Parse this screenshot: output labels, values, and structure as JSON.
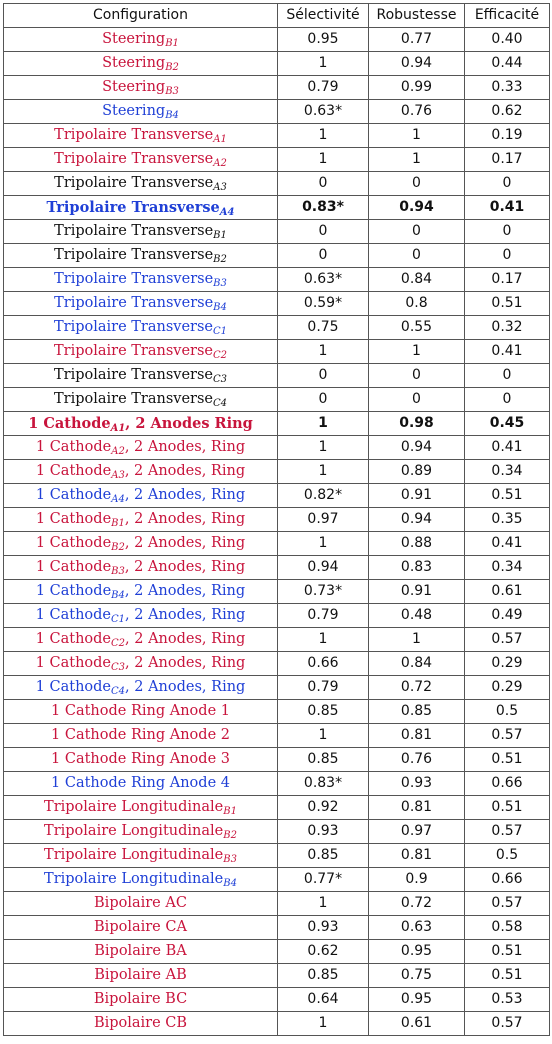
{
  "headers": [
    "Configuration",
    "Sélectivité",
    "Robustesse",
    "Efficacité"
  ],
  "colors": {
    "red": "#c8143c",
    "blue": "#1f3fd6",
    "black": "#111111"
  },
  "rows": [
    {
      "name": "Steering",
      "sub": "B1",
      "suffix": "",
      "color": "red",
      "bold": false,
      "sel": "0.95",
      "rob": "0.77",
      "eff": "0.40"
    },
    {
      "name": "Steering",
      "sub": "B2",
      "suffix": "",
      "color": "red",
      "bold": false,
      "sel": "1",
      "rob": "0.94",
      "eff": "0.44"
    },
    {
      "name": "Steering",
      "sub": "B3",
      "suffix": "",
      "color": "red",
      "bold": false,
      "sel": "0.79",
      "rob": "0.99",
      "eff": "0.33"
    },
    {
      "name": "Steering",
      "sub": "B4",
      "suffix": "",
      "color": "blue",
      "bold": false,
      "sel": "0.63*",
      "rob": "0.76",
      "eff": "0.62"
    },
    {
      "name": "Tripolaire Transverse",
      "sub": "A1",
      "suffix": "",
      "color": "red",
      "bold": false,
      "sel": "1",
      "rob": "1",
      "eff": "0.19"
    },
    {
      "name": "Tripolaire Transverse",
      "sub": "A2",
      "suffix": "",
      "color": "red",
      "bold": false,
      "sel": "1",
      "rob": "1",
      "eff": "0.17"
    },
    {
      "name": "Tripolaire Transverse",
      "sub": "A3",
      "suffix": "",
      "color": "black",
      "bold": false,
      "sel": "0",
      "rob": "0",
      "eff": "0"
    },
    {
      "name": "Tripolaire Transverse",
      "sub": "A4",
      "suffix": "",
      "color": "blue",
      "bold": true,
      "sel": "0.83*",
      "rob": "0.94",
      "eff": "0.41"
    },
    {
      "name": "Tripolaire Transverse",
      "sub": "B1",
      "suffix": "",
      "color": "black",
      "bold": false,
      "sel": "0",
      "rob": "0",
      "eff": "0"
    },
    {
      "name": "Tripolaire Transverse",
      "sub": "B2",
      "suffix": "",
      "color": "black",
      "bold": false,
      "sel": "0",
      "rob": "0",
      "eff": "0"
    },
    {
      "name": "Tripolaire Transverse",
      "sub": "B3",
      "suffix": "",
      "color": "blue",
      "bold": false,
      "sel": "0.63*",
      "rob": "0.84",
      "eff": "0.17"
    },
    {
      "name": "Tripolaire Transverse",
      "sub": "B4",
      "suffix": "",
      "color": "blue",
      "bold": false,
      "sel": "0.59*",
      "rob": "0.8",
      "eff": "0.51"
    },
    {
      "name": "Tripolaire Transverse",
      "sub": "C1",
      "suffix": "",
      "color": "blue",
      "bold": false,
      "sel": "0.75",
      "rob": "0.55",
      "eff": "0.32"
    },
    {
      "name": "Tripolaire Transverse",
      "sub": "C2",
      "suffix": "",
      "color": "red",
      "bold": false,
      "sel": "1",
      "rob": "1",
      "eff": "0.41"
    },
    {
      "name": "Tripolaire Transverse",
      "sub": "C3",
      "suffix": "",
      "color": "black",
      "bold": false,
      "sel": "0",
      "rob": "0",
      "eff": "0"
    },
    {
      "name": "Tripolaire Transverse",
      "sub": "C4",
      "suffix": "",
      "color": "black",
      "bold": false,
      "sel": "0",
      "rob": "0",
      "eff": "0"
    },
    {
      "name": "1 Cathode",
      "sub": "A1",
      "suffix": ", 2 Anodes Ring",
      "color": "red",
      "bold": true,
      "sel": "1",
      "rob": "0.98",
      "eff": "0.45"
    },
    {
      "name": "1 Cathode",
      "sub": "A2",
      "suffix": ", 2 Anodes, Ring",
      "color": "red",
      "bold": false,
      "sel": "1",
      "rob": "0.94",
      "eff": "0.41"
    },
    {
      "name": "1 Cathode",
      "sub": "A3",
      "suffix": ", 2 Anodes, Ring",
      "color": "red",
      "bold": false,
      "sel": "1",
      "rob": "0.89",
      "eff": "0.34"
    },
    {
      "name": "1 Cathode",
      "sub": "A4",
      "suffix": ", 2 Anodes, Ring",
      "color": "blue",
      "bold": false,
      "sel": "0.82*",
      "rob": "0.91",
      "eff": "0.51"
    },
    {
      "name": "1 Cathode",
      "sub": "B1",
      "suffix": ", 2 Anodes, Ring",
      "color": "red",
      "bold": false,
      "sel": "0.97",
      "rob": "0.94",
      "eff": "0.35"
    },
    {
      "name": "1 Cathode",
      "sub": "B2",
      "suffix": ", 2 Anodes, Ring",
      "color": "red",
      "bold": false,
      "sel": "1",
      "rob": "0.88",
      "eff": "0.41"
    },
    {
      "name": "1 Cathode",
      "sub": "B3",
      "suffix": ", 2 Anodes, Ring",
      "color": "red",
      "bold": false,
      "sel": "0.94",
      "rob": "0.83",
      "eff": "0.34"
    },
    {
      "name": "1 Cathode",
      "sub": "B4",
      "suffix": ", 2 Anodes, Ring",
      "color": "blue",
      "bold": false,
      "sel": "0.73*",
      "rob": "0.91",
      "eff": "0.61"
    },
    {
      "name": "1 Cathode",
      "sub": "C1",
      "suffix": ", 2 Anodes, Ring",
      "color": "blue",
      "bold": false,
      "sel": "0.79",
      "rob": "0.48",
      "eff": "0.49"
    },
    {
      "name": "1 Cathode",
      "sub": "C2",
      "suffix": ", 2 Anodes, Ring",
      "color": "red",
      "bold": false,
      "sel": "1",
      "rob": "1",
      "eff": "0.57"
    },
    {
      "name": "1 Cathode",
      "sub": "C3",
      "suffix": ", 2 Anodes, Ring",
      "color": "red",
      "bold": false,
      "sel": "0.66",
      "rob": "0.84",
      "eff": "0.29"
    },
    {
      "name": "1 Cathode",
      "sub": "C4",
      "suffix": ", 2 Anodes, Ring",
      "color": "blue",
      "bold": false,
      "sel": "0.79",
      "rob": "0.72",
      "eff": "0.29"
    },
    {
      "name": "1 Cathode Ring Anode 1",
      "sub": "",
      "suffix": "",
      "color": "red",
      "bold": false,
      "sel": "0.85",
      "rob": "0.85",
      "eff": "0.5"
    },
    {
      "name": "1 Cathode Ring Anode 2",
      "sub": "",
      "suffix": "",
      "color": "red",
      "bold": false,
      "sel": "1",
      "rob": "0.81",
      "eff": "0.57"
    },
    {
      "name": "1 Cathode Ring Anode 3",
      "sub": "",
      "suffix": "",
      "color": "red",
      "bold": false,
      "sel": "0.85",
      "rob": "0.76",
      "eff": "0.51"
    },
    {
      "name": "1 Cathode Ring Anode 4",
      "sub": "",
      "suffix": "",
      "color": "blue",
      "bold": false,
      "sel": "0.83*",
      "rob": "0.93",
      "eff": "0.66"
    },
    {
      "name": "Tripolaire Longitudinale",
      "sub": "B1",
      "suffix": "",
      "color": "red",
      "bold": false,
      "sel": "0.92",
      "rob": "0.81",
      "eff": "0.51"
    },
    {
      "name": "Tripolaire Longitudinale",
      "sub": "B2",
      "suffix": "",
      "color": "red",
      "bold": false,
      "sel": "0.93",
      "rob": "0.97",
      "eff": "0.57"
    },
    {
      "name": "Tripolaire Longitudinale",
      "sub": "B3",
      "suffix": "",
      "color": "red",
      "bold": false,
      "sel": "0.85",
      "rob": "0.81",
      "eff": "0.5"
    },
    {
      "name": "Tripolaire Longitudinale",
      "sub": "B4",
      "suffix": "",
      "color": "blue",
      "bold": false,
      "sel": "0.77*",
      "rob": "0.9",
      "eff": "0.66"
    },
    {
      "name": "Bipolaire AC",
      "sub": "",
      "suffix": "",
      "color": "red",
      "bold": false,
      "sel": "1",
      "rob": "0.72",
      "eff": "0.57"
    },
    {
      "name": "Bipolaire CA",
      "sub": "",
      "suffix": "",
      "color": "red",
      "bold": false,
      "sel": "0.93",
      "rob": "0.63",
      "eff": "0.58"
    },
    {
      "name": "Bipolaire BA",
      "sub": "",
      "suffix": "",
      "color": "red",
      "bold": false,
      "sel": "0.62",
      "rob": "0.95",
      "eff": "0.51"
    },
    {
      "name": "Bipolaire AB",
      "sub": "",
      "suffix": "",
      "color": "red",
      "bold": false,
      "sel": "0.85",
      "rob": "0.75",
      "eff": "0.51"
    },
    {
      "name": "Bipolaire BC",
      "sub": "",
      "suffix": "",
      "color": "red",
      "bold": false,
      "sel": "0.64",
      "rob": "0.95",
      "eff": "0.53"
    },
    {
      "name": "Bipolaire CB",
      "sub": "",
      "suffix": "",
      "color": "red",
      "bold": false,
      "sel": "1",
      "rob": "0.61",
      "eff": "0.57"
    }
  ]
}
